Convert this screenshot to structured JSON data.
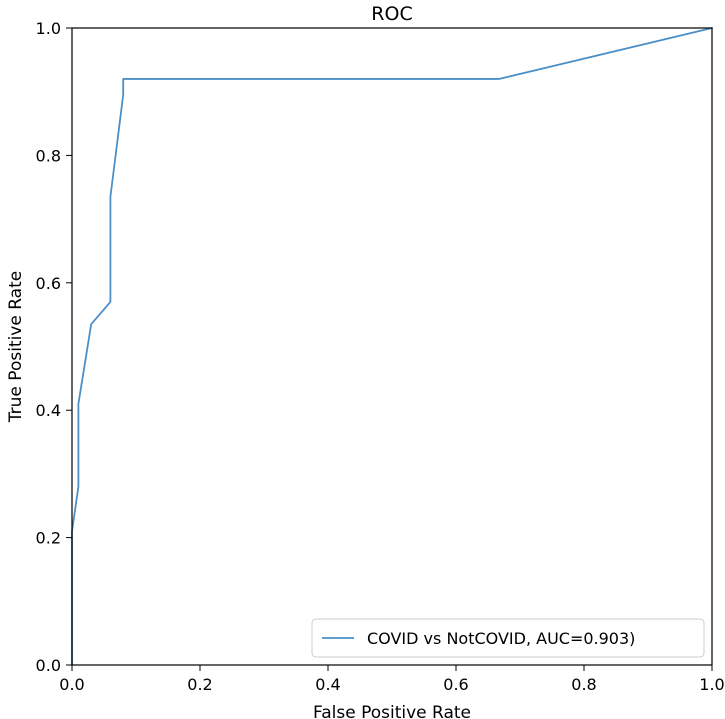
{
  "chart_data": {
    "type": "line",
    "title": "ROC",
    "xlabel": "False Positive Rate",
    "ylabel": "True Positive Rate",
    "xlim": [
      0.0,
      1.0
    ],
    "ylim": [
      0.0,
      1.0
    ],
    "xticks": [
      0.0,
      0.2,
      0.4,
      0.6,
      0.8,
      1.0
    ],
    "xtick_labels": [
      "0.0",
      "0.2",
      "0.4",
      "0.6",
      "0.8",
      "1.0"
    ],
    "yticks": [
      0.0,
      0.2,
      0.4,
      0.6,
      0.8,
      1.0
    ],
    "ytick_labels": [
      "0.0",
      "0.2",
      "0.4",
      "0.6",
      "0.8",
      "1.0"
    ],
    "grid": false,
    "legend_position": "lower-right",
    "series": [
      {
        "name": "COVID vs NotCOVID, AUC=0.903)",
        "color": "#4a8fc8",
        "x": [
          0.0,
          0.0,
          0.01,
          0.01,
          0.01,
          0.03,
          0.06,
          0.06,
          0.08,
          0.08,
          0.08,
          0.667,
          1.0
        ],
        "y": [
          0.0,
          0.21,
          0.28,
          0.41,
          0.41,
          0.535,
          0.57,
          0.735,
          0.895,
          0.92,
          0.92,
          0.92,
          1.0
        ]
      }
    ]
  }
}
